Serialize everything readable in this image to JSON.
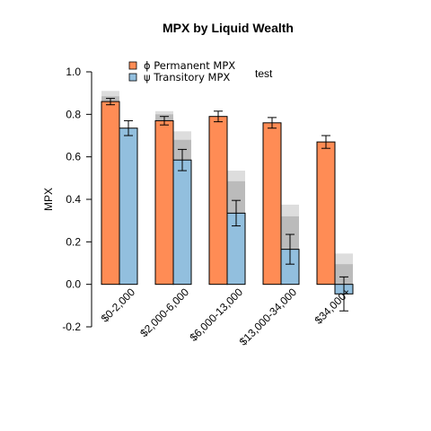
{
  "chart_data": {
    "type": "bar",
    "title": "MPX by Liquid Wealth",
    "xlabel": "",
    "ylabel": "MPX",
    "ylim": [
      -0.2,
      1.0
    ],
    "y_ticks": [
      "-0.2",
      "0.0",
      "0.2",
      "0.4",
      "0.6",
      "0.8",
      "1.0"
    ],
    "grid": false,
    "legend_position": "top-left",
    "annotation": "test",
    "categories": [
      "$0-2,000",
      "$2,000-6,000",
      "$6,000-13,000",
      "$13,000-34,000",
      "$34,000+"
    ],
    "series": [
      {
        "name": "Permanent MPX",
        "symbol": "ϕ",
        "color": "#FF8C55",
        "values": [
          0.86,
          0.77,
          0.79,
          0.76,
          0.67
        ],
        "error_low": [
          0.845,
          0.75,
          0.765,
          0.735,
          0.64
        ],
        "error_high": [
          0.875,
          0.79,
          0.815,
          0.785,
          0.7
        ],
        "shade_upper": [
          0.91,
          0.815,
          0.79,
          0.76,
          0.67
        ],
        "shade_lower": [
          0.885,
          0.8,
          0.79,
          0.76,
          0.67
        ]
      },
      {
        "name": "Transitory MPX",
        "symbol": "ψ",
        "color": "#92BFDE",
        "values": [
          0.735,
          0.585,
          0.335,
          0.165,
          -0.045
        ],
        "error_low": [
          0.7,
          0.535,
          0.275,
          0.095,
          -0.125
        ],
        "error_high": [
          0.77,
          0.635,
          0.395,
          0.235,
          0.035
        ],
        "shade_upper": [
          0.735,
          0.72,
          0.535,
          0.375,
          0.145
        ],
        "shade_lower": [
          0.735,
          0.68,
          0.485,
          0.32,
          0.095
        ]
      }
    ]
  },
  "colors": {
    "shade_light": "#DDDDDD",
    "shade_dark": "#BBBBBB",
    "axis": "#000000"
  }
}
